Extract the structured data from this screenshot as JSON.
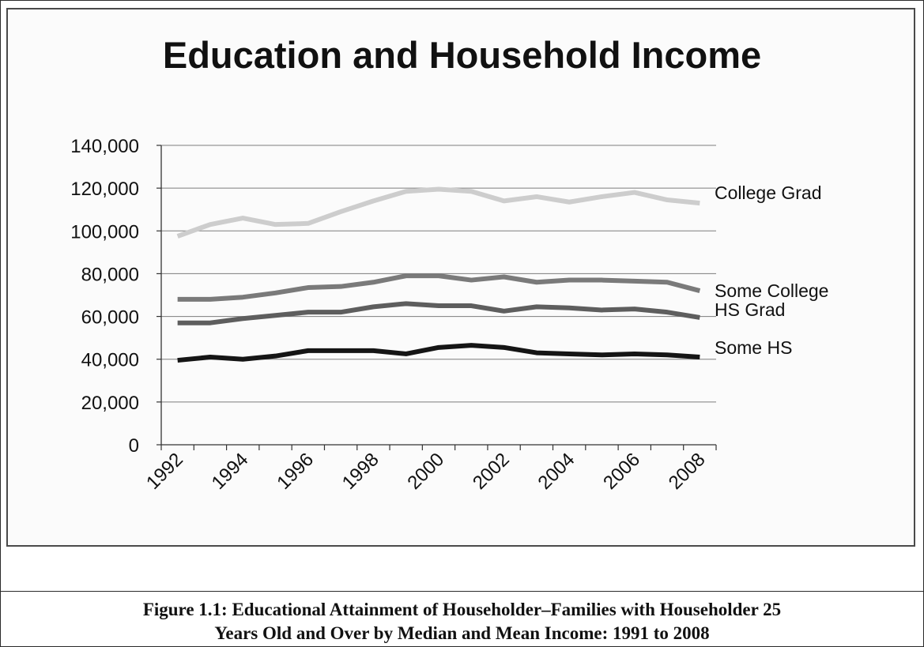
{
  "chart_data": {
    "type": "line",
    "title": "Education and Household Income",
    "xlabel": "",
    "ylabel": "",
    "ylim": [
      0,
      140000
    ],
    "yticks": [
      "0",
      "20,000",
      "40,000",
      "60,000",
      "80,000",
      "100,000",
      "120,000",
      "140,000"
    ],
    "x": [
      1992,
      1993,
      1994,
      1995,
      1996,
      1997,
      1998,
      1999,
      2000,
      2001,
      2002,
      2003,
      2004,
      2005,
      2006,
      2007,
      2008
    ],
    "xticks": [
      "1992",
      "1994",
      "1996",
      "1998",
      "2000",
      "2002",
      "2004",
      "2006",
      "2008"
    ],
    "grid": "horizontal",
    "legend": "labels at line ends",
    "series": [
      {
        "name": "College Grad",
        "color": "#cdcdcd",
        "values": [
          97500,
          103000,
          106000,
          103000,
          103500,
          109000,
          114000,
          118500,
          119500,
          118500,
          114000,
          116000,
          113500,
          116000,
          118000,
          114500,
          113000
        ]
      },
      {
        "name": "Some College",
        "color": "#7a7a7a",
        "values": [
          68000,
          68000,
          69000,
          71000,
          73500,
          74000,
          76000,
          79000,
          79000,
          77000,
          78500,
          76000,
          77000,
          77000,
          76500,
          76000,
          72000
        ]
      },
      {
        "name": "HS Grad",
        "color": "#5e5e5e",
        "values": [
          57000,
          57000,
          59000,
          60500,
          62000,
          62000,
          64500,
          66000,
          65000,
          65000,
          62500,
          64500,
          64000,
          63000,
          63500,
          62000,
          59500
        ]
      },
      {
        "name": "Some HS",
        "color": "#151515",
        "values": [
          39500,
          41000,
          40000,
          41500,
          44000,
          44000,
          44000,
          42500,
          45500,
          46500,
          45500,
          43000,
          42500,
          42000,
          42500,
          42000,
          41000
        ]
      }
    ]
  },
  "caption": {
    "line1": "Figure 1.1:  Educational Attainment of Householder–Families with Householder 25",
    "line2": "Years Old and Over by Median and Mean Income:  1991 to 2008"
  }
}
